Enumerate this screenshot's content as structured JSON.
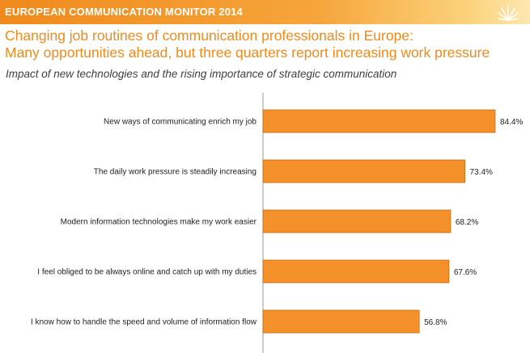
{
  "header": {
    "banner_title": "EUROPEAN COMMUNICATION MONITOR 2014",
    "headline_line1": "Changing job routines of communication professionals in Europe:",
    "headline_line2": "Many opportunities ahead, but three quarters report increasing work pressure",
    "subtitle": "Impact of new technologies and the rising importance of strategic communication"
  },
  "colors": {
    "accent": "#f08a1c",
    "bar": "#f5912a",
    "bar_edge": "#c86a10"
  },
  "chart_data": {
    "type": "bar",
    "orientation": "horizontal",
    "categories": [
      "New ways of communicating enrich my job",
      "The daily work pressure is steadily increasing",
      "Modern information technologies make my work easier",
      "I feel obliged to be always online and catch up with my duties",
      "I know how to handle the speed and volume of information flow"
    ],
    "values": [
      84.4,
      73.4,
      68.2,
      67.6,
      56.8
    ],
    "value_labels": [
      "84.4%",
      "73.4%",
      "68.2%",
      "67.6%",
      "56.8%"
    ],
    "xlim": [
      0,
      100
    ],
    "grid": false,
    "legend": "none"
  }
}
